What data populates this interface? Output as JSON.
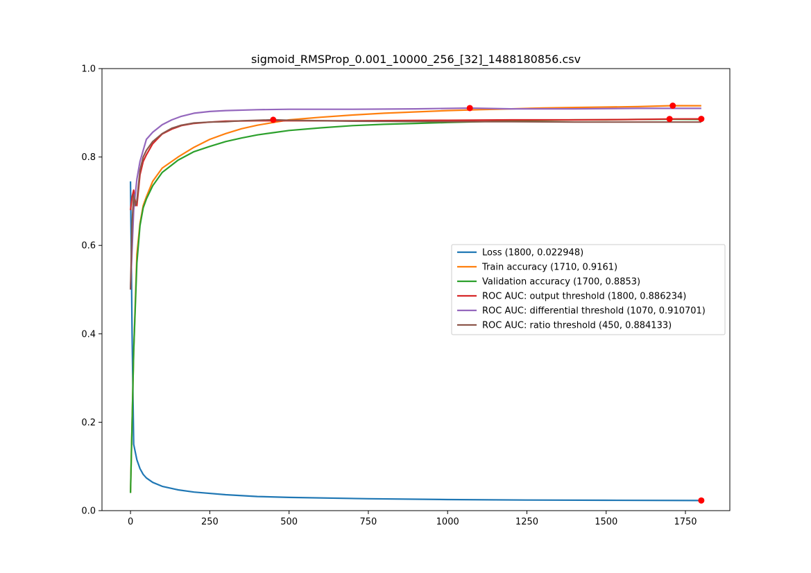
{
  "chart_data": {
    "type": "line",
    "title": "sigmoid_RMSProp_0.001_10000_256_[32]_1488180856.csv",
    "xlabel": "",
    "ylabel": "",
    "xlim": [
      -90,
      1890
    ],
    "ylim": [
      0.0,
      1.0
    ],
    "xticks": [
      0,
      250,
      500,
      750,
      1000,
      1250,
      1500,
      1750
    ],
    "yticks": [
      0.0,
      0.2,
      0.4,
      0.6,
      0.8,
      1.0
    ],
    "xtick_labels": [
      "0",
      "250",
      "500",
      "750",
      "1000",
      "1250",
      "1500",
      "1750"
    ],
    "ytick_labels": [
      "0.0",
      "0.2",
      "0.4",
      "0.6",
      "0.8",
      "1.0"
    ],
    "grid": false,
    "legend_position": "center-right",
    "series": [
      {
        "name": "Loss (1800, 0.022948)",
        "color": "#1f77b4",
        "x": [
          0,
          5,
          10,
          20,
          30,
          40,
          50,
          70,
          100,
          150,
          200,
          300,
          400,
          500,
          750,
          1000,
          1250,
          1500,
          1800
        ],
        "y": [
          0.745,
          0.4,
          0.15,
          0.115,
          0.095,
          0.082,
          0.074,
          0.064,
          0.055,
          0.047,
          0.042,
          0.036,
          0.032,
          0.03,
          0.027,
          0.025,
          0.024,
          0.0235,
          0.022948
        ],
        "marker": {
          "x": 1800,
          "y": 0.022948
        }
      },
      {
        "name": "Train accuracy (1710, 0.9161)",
        "color": "#ff7f0e",
        "x": [
          0,
          10,
          20,
          30,
          40,
          50,
          70,
          100,
          150,
          200,
          250,
          300,
          350,
          400,
          450,
          500,
          600,
          700,
          800,
          900,
          1000,
          1100,
          1200,
          1300,
          1400,
          1500,
          1600,
          1710,
          1800
        ],
        "y": [
          0.04,
          0.36,
          0.58,
          0.65,
          0.69,
          0.71,
          0.745,
          0.775,
          0.8,
          0.822,
          0.84,
          0.853,
          0.864,
          0.872,
          0.878,
          0.884,
          0.89,
          0.895,
          0.899,
          0.902,
          0.905,
          0.907,
          0.909,
          0.911,
          0.912,
          0.913,
          0.914,
          0.9161,
          0.916
        ],
        "marker": {
          "x": 1710,
          "y": 0.9161
        }
      },
      {
        "name": "Validation accuracy (1700, 0.8853)",
        "color": "#2ca02c",
        "x": [
          0,
          10,
          20,
          30,
          40,
          50,
          70,
          100,
          150,
          200,
          250,
          300,
          350,
          400,
          450,
          500,
          600,
          700,
          800,
          900,
          1000,
          1100,
          1200,
          1300,
          1400,
          1500,
          1600,
          1700,
          1800
        ],
        "y": [
          0.04,
          0.36,
          0.56,
          0.645,
          0.685,
          0.705,
          0.735,
          0.765,
          0.793,
          0.812,
          0.824,
          0.835,
          0.843,
          0.85,
          0.855,
          0.86,
          0.866,
          0.871,
          0.874,
          0.876,
          0.878,
          0.88,
          0.882,
          0.883,
          0.884,
          0.884,
          0.885,
          0.8853,
          0.885
        ],
        "marker": null
      },
      {
        "name": "ROC AUC: output threshold (1800, 0.886234)",
        "color": "#d62728",
        "x": [
          0,
          5,
          10,
          15,
          20,
          30,
          40,
          50,
          70,
          100,
          130,
          160,
          200,
          250,
          300,
          400,
          500,
          700,
          1000,
          1200,
          1400,
          1600,
          1700,
          1800
        ],
        "y": [
          0.68,
          0.71,
          0.725,
          0.7,
          0.69,
          0.76,
          0.79,
          0.805,
          0.83,
          0.852,
          0.863,
          0.871,
          0.876,
          0.879,
          0.881,
          0.882,
          0.882,
          0.882,
          0.883,
          0.884,
          0.884,
          0.885,
          0.886,
          0.886234
        ],
        "marker": {
          "x": 1800,
          "y": 0.886234
        },
        "extra_marker": {
          "x": 1700,
          "y": 0.886
        }
      },
      {
        "name": "ROC AUC: differential threshold (1070, 0.910701)",
        "color": "#9467bd",
        "x": [
          0,
          10,
          20,
          30,
          40,
          50,
          70,
          100,
          130,
          160,
          200,
          250,
          300,
          400,
          500,
          700,
          900,
          1070,
          1200,
          1400,
          1600,
          1800
        ],
        "y": [
          0.5,
          0.68,
          0.75,
          0.79,
          0.815,
          0.84,
          0.856,
          0.873,
          0.884,
          0.892,
          0.899,
          0.903,
          0.905,
          0.907,
          0.908,
          0.908,
          0.909,
          0.910701,
          0.909,
          0.909,
          0.91,
          0.91
        ],
        "marker": {
          "x": 1070,
          "y": 0.910701
        }
      },
      {
        "name": "ROC AUC: ratio threshold (450, 0.884133)",
        "color": "#8c564b",
        "x": [
          0,
          5,
          10,
          15,
          20,
          30,
          40,
          50,
          70,
          100,
          130,
          160,
          200,
          250,
          300,
          350,
          400,
          450,
          500,
          700,
          1000,
          1200,
          1400,
          1600,
          1800
        ],
        "y": [
          0.5,
          0.65,
          0.715,
          0.69,
          0.7,
          0.77,
          0.8,
          0.815,
          0.835,
          0.853,
          0.865,
          0.872,
          0.877,
          0.879,
          0.88,
          0.882,
          0.883,
          0.884133,
          0.883,
          0.881,
          0.88,
          0.88,
          0.879,
          0.879,
          0.879
        ],
        "marker": {
          "x": 450,
          "y": 0.884133
        }
      }
    ],
    "marker_color": "#ff0000"
  }
}
